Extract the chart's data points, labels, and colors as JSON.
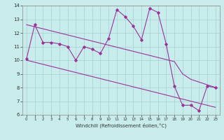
{
  "xlabel": "Windchill (Refroidissement éolien,°C)",
  "bg_color": "#c8ecec",
  "grid_color": "#a8d0d0",
  "line_color": "#993399",
  "hours": [
    0,
    1,
    2,
    3,
    4,
    5,
    6,
    7,
    8,
    9,
    10,
    11,
    12,
    13,
    14,
    15,
    16,
    17,
    18,
    19,
    20,
    21,
    22,
    23
  ],
  "windchill": [
    10.1,
    12.6,
    11.3,
    11.3,
    11.2,
    11.0,
    10.0,
    11.0,
    10.8,
    10.5,
    11.6,
    13.7,
    13.2,
    12.5,
    11.5,
    13.8,
    13.5,
    11.2,
    8.1,
    6.7,
    6.7,
    6.3,
    8.1,
    8.0
  ],
  "smooth_upper": [
    12.6,
    12.45,
    12.3,
    12.15,
    12.0,
    11.85,
    11.7,
    11.55,
    11.4,
    11.25,
    11.1,
    10.95,
    10.8,
    10.65,
    10.5,
    10.35,
    10.2,
    10.05,
    9.9,
    9.0,
    8.6,
    8.4,
    8.2,
    8.0
  ],
  "smooth_lower": [
    10.0,
    9.85,
    9.7,
    9.55,
    9.4,
    9.25,
    9.1,
    8.95,
    8.8,
    8.65,
    8.5,
    8.35,
    8.2,
    8.05,
    7.9,
    7.75,
    7.6,
    7.45,
    7.3,
    7.15,
    7.0,
    6.85,
    6.7,
    6.55
  ],
  "ylim": [
    6,
    14
  ],
  "yticks": [
    6,
    7,
    8,
    9,
    10,
    11,
    12,
    13,
    14
  ],
  "xticks": [
    0,
    1,
    2,
    3,
    4,
    5,
    6,
    7,
    8,
    9,
    10,
    11,
    12,
    13,
    14,
    15,
    16,
    17,
    18,
    19,
    20,
    21,
    22,
    23
  ]
}
